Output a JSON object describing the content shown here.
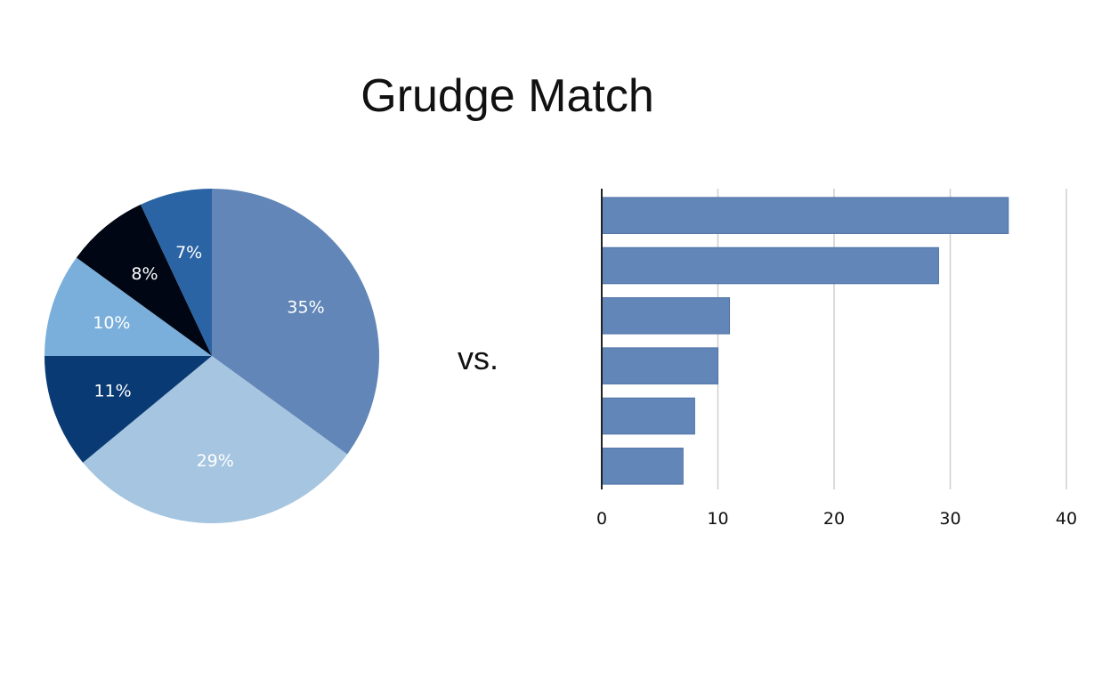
{
  "title": "Grudge Match",
  "separator": "vs.",
  "chart_data": [
    {
      "type": "pie",
      "slices": [
        {
          "label": "35%",
          "value": 35,
          "color": "#6286b7"
        },
        {
          "label": "29%",
          "value": 29,
          "color": "#a6c5e0"
        },
        {
          "label": "11%",
          "value": 11,
          "color": "#093a74"
        },
        {
          "label": "10%",
          "value": 10,
          "color": "#7aafdb"
        },
        {
          "label": "8%",
          "value": 8,
          "color": "#000613"
        },
        {
          "label": "7%",
          "value": 7,
          "color": "#2a64a4"
        }
      ],
      "start": "12-o-clock",
      "direction": "clockwise"
    },
    {
      "type": "bar",
      "orientation": "horizontal",
      "values": [
        35,
        29,
        11,
        10,
        8,
        7
      ],
      "xlim": [
        0,
        40
      ],
      "xticks": [
        "0",
        "10",
        "20",
        "30",
        "40"
      ],
      "grid": true,
      "bar_color": "#6286b7"
    }
  ]
}
